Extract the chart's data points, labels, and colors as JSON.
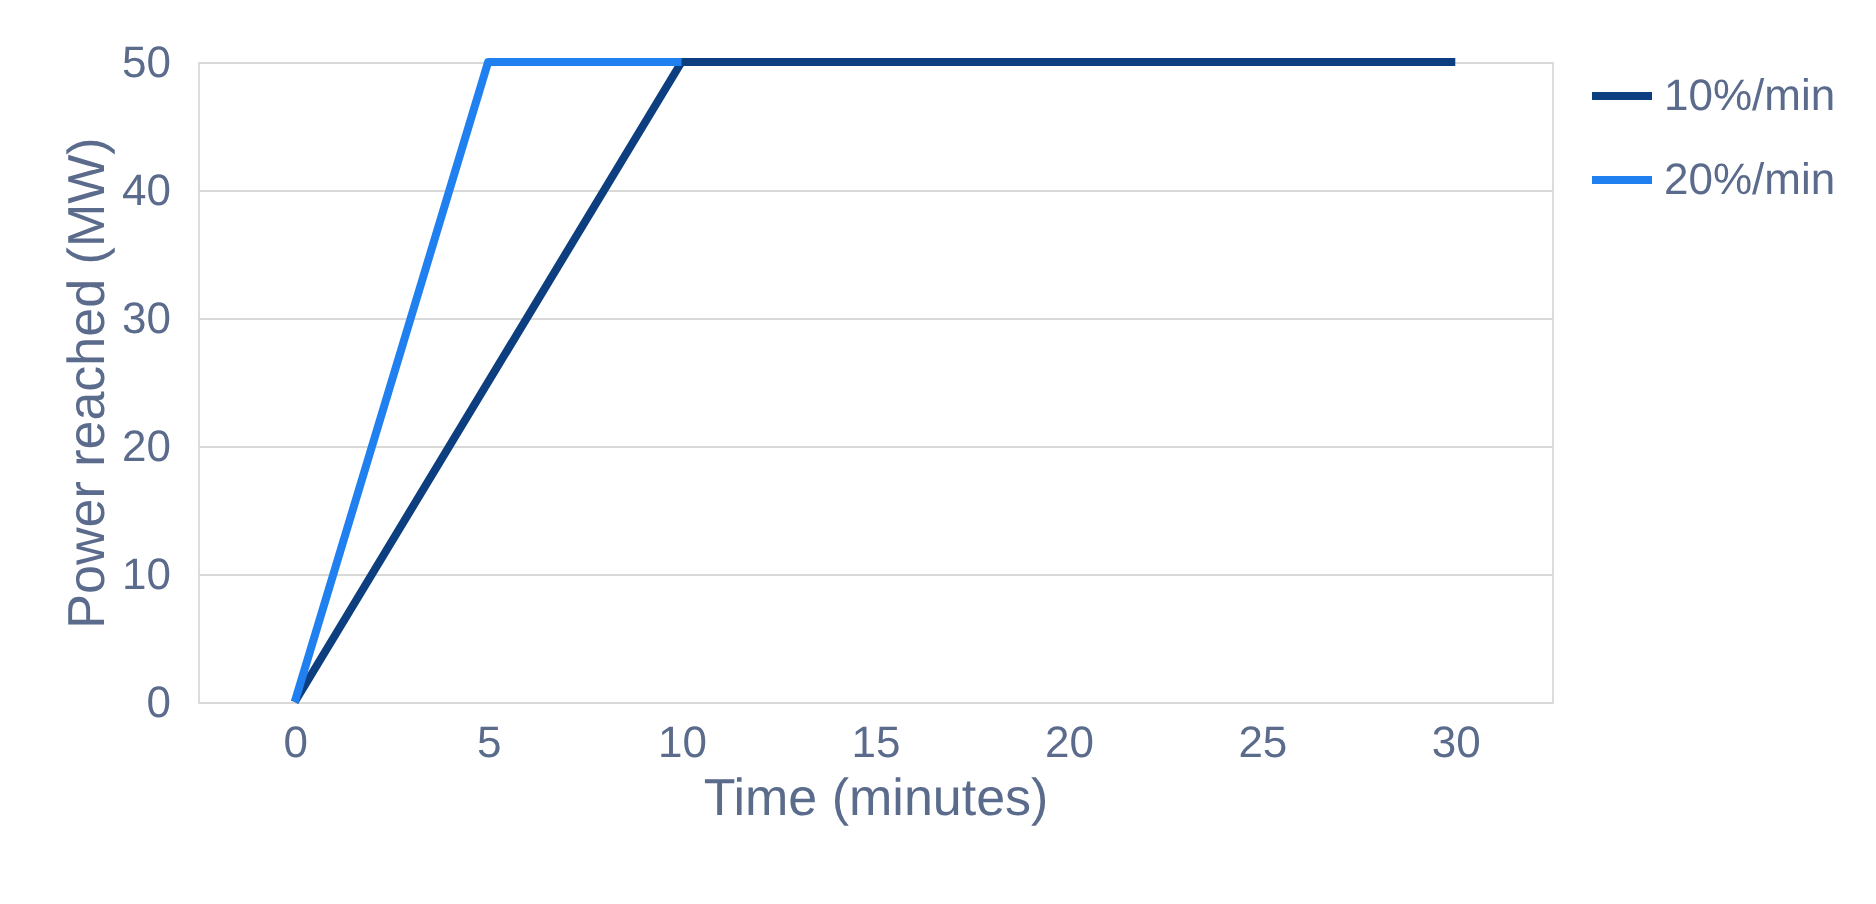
{
  "chart_data": {
    "type": "line",
    "xlabel": "Time (minutes)",
    "ylabel": "Power reached (MW)",
    "xlim": [
      -2.5,
      32.5
    ],
    "xticks": [
      0,
      5,
      10,
      15,
      20,
      25,
      30
    ],
    "ylim": [
      0,
      50
    ],
    "yticks": [
      0,
      10,
      20,
      30,
      40,
      50
    ],
    "grid": "y",
    "legend": "right",
    "marker": "none",
    "line_style": "solid",
    "series": [
      {
        "name": "10%/min",
        "color": "#0d3f80",
        "x": [
          0,
          10,
          30
        ],
        "values": [
          0,
          50,
          50
        ]
      },
      {
        "name": "20%/min",
        "color": "#2180f0",
        "x": [
          0,
          5,
          10
        ],
        "values": [
          0,
          50,
          50
        ]
      }
    ]
  }
}
